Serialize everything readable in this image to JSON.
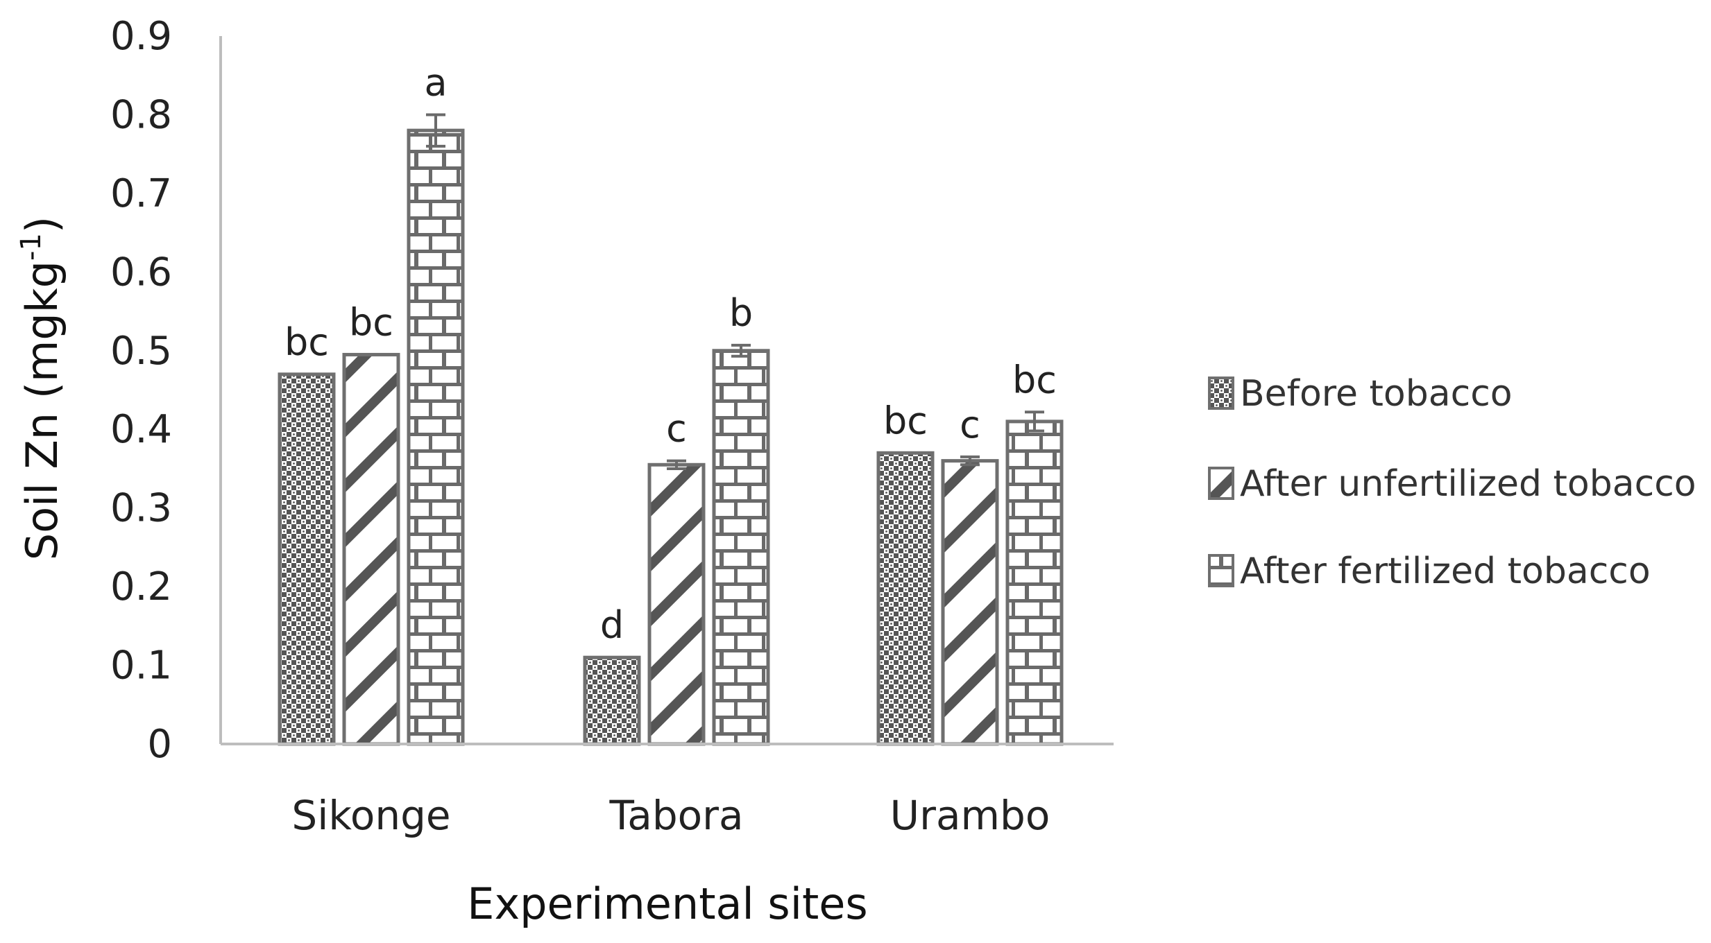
{
  "chart_data": {
    "type": "bar",
    "title": "",
    "xlabel": "Experimental sites",
    "ylabel_main": "Soil Zn (mgkg",
    "ylabel_sup": "-1",
    "ylabel_close": ")",
    "ylim": [
      0,
      0.9
    ],
    "ytick_step": 0.1,
    "yticks": [
      "0",
      "0.1",
      "0.2",
      "0.3",
      "0.4",
      "0.5",
      "0.6",
      "0.7",
      "0.8",
      "0.9"
    ],
    "categories": [
      "Sikonge",
      "Tabora",
      "Urambo"
    ],
    "grid": false,
    "legend_position": "right",
    "series": [
      {
        "name": "Before tobacco",
        "pattern": "checker",
        "values": [
          0.47,
          0.11,
          0.37
        ],
        "errors": [
          0.0,
          0.0,
          0.0
        ],
        "labels": [
          "bc",
          "d",
          "bc"
        ]
      },
      {
        "name": "After unfertilized tobacco",
        "pattern": "diagonal",
        "values": [
          0.495,
          0.355,
          0.36
        ],
        "errors": [
          0.0,
          0.005,
          0.005
        ],
        "labels": [
          "bc",
          "c",
          "c"
        ]
      },
      {
        "name": "After fertilized tobacco",
        "pattern": "brick",
        "values": [
          0.78,
          0.5,
          0.41
        ],
        "errors": [
          0.02,
          0.007,
          0.012
        ],
        "labels": [
          "a",
          "b",
          "bc"
        ]
      }
    ],
    "colors": {
      "bar_edge": "#6f6f6f",
      "pattern_ink": "#555555",
      "axis": "#bdbdbd",
      "text": "#222222"
    }
  }
}
